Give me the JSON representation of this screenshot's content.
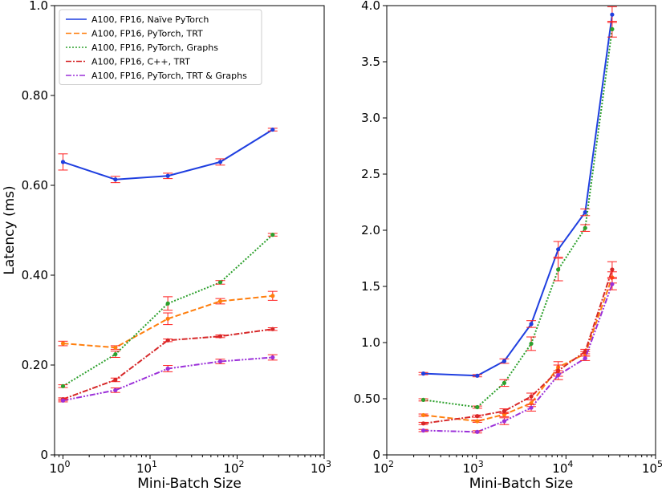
{
  "chart_data": [
    {
      "type": "line",
      "xscale": "log",
      "xlabel": "Mini-Batch Size",
      "ylabel": "Latency (ms)",
      "xlim": [
        0.8,
        1000
      ],
      "ylim": [
        0,
        1.0
      ],
      "x_ticks": [
        "10^0",
        "10^1",
        "10^2",
        "10^3"
      ],
      "y_ticks": [
        "0",
        "0.20",
        "0.40",
        "0.60",
        "0.80",
        "1.0"
      ],
      "legend": "top-left",
      "x": [
        1,
        4,
        16,
        64,
        256
      ],
      "series": [
        {
          "name": "A100, FP16, Naïve PyTorch",
          "color": "#1f3fe0",
          "dash": "solid",
          "values": [
            0.652,
            0.613,
            0.621,
            0.652,
            0.724
          ],
          "errors": [
            0.018,
            0.007,
            0.006,
            0.007,
            0.003
          ]
        },
        {
          "name": "A100, FP16, PyTorch, TRT",
          "color": "#ff7f0e",
          "dash": "dashed",
          "values": [
            0.248,
            0.239,
            0.303,
            0.342,
            0.354
          ],
          "errors": [
            0.005,
            0.004,
            0.013,
            0.006,
            0.01
          ]
        },
        {
          "name": "A100, FP16, PyTorch, Graphs",
          "color": "#2ca02c",
          "dash": "dotted",
          "values": [
            0.153,
            0.224,
            0.337,
            0.384,
            0.49
          ],
          "errors": [
            0.003,
            0.007,
            0.015,
            0.004,
            0.003
          ]
        },
        {
          "name": "A100, FP16, C++, TRT",
          "color": "#d62728",
          "dash": "dashdot",
          "values": [
            0.124,
            0.167,
            0.255,
            0.264,
            0.28
          ],
          "errors": [
            0.003,
            0.004,
            0.003,
            0.003,
            0.003
          ]
        },
        {
          "name": "A100, FP16, PyTorch, TRT & Graphs",
          "color": "#9b30d9",
          "dash": "dashdotdot",
          "values": [
            0.121,
            0.144,
            0.192,
            0.208,
            0.217
          ],
          "errors": [
            0.003,
            0.005,
            0.007,
            0.005,
            0.006
          ]
        }
      ]
    },
    {
      "type": "line",
      "xscale": "log",
      "xlabel": "Mini-Batch Size",
      "ylabel": "",
      "xlim": [
        100,
        100000
      ],
      "ylim": [
        0,
        4.0
      ],
      "x_ticks": [
        "10^2",
        "10^3",
        "10^4",
        "10^5"
      ],
      "y_ticks": [
        "0",
        "0.50",
        "1.0",
        "1.5",
        "2.0",
        "2.5",
        "3.0",
        "3.5",
        "4.0"
      ],
      "x": [
        256,
        1024,
        2048,
        4096,
        8192,
        16384,
        32768
      ],
      "series": [
        {
          "name": "A100, FP16, Naïve PyTorch",
          "color": "#1f3fe0",
          "dash": "solid",
          "values": [
            0.724,
            0.705,
            0.835,
            1.165,
            1.83,
            2.16,
            3.92
          ],
          "errors": [
            0.01,
            0.01,
            0.02,
            0.03,
            0.07,
            0.03,
            0.07
          ]
        },
        {
          "name": "A100, FP16, PyTorch, TRT",
          "color": "#ff7f0e",
          "dash": "dashed",
          "values": [
            0.354,
            0.3,
            0.36,
            0.46,
            0.78,
            0.9,
            1.58
          ],
          "errors": [
            0.01,
            0.01,
            0.02,
            0.03,
            0.05,
            0.02,
            0.05
          ]
        },
        {
          "name": "A100, FP16, PyTorch, Graphs",
          "color": "#2ca02c",
          "dash": "dotted",
          "values": [
            0.49,
            0.425,
            0.64,
            0.99,
            1.65,
            2.02,
            3.79
          ],
          "errors": [
            0.01,
            0.01,
            0.03,
            0.06,
            0.1,
            0.03,
            0.07
          ]
        },
        {
          "name": "A100, FP16, C++, TRT",
          "color": "#d62728",
          "dash": "dashdot",
          "values": [
            0.28,
            0.345,
            0.39,
            0.52,
            0.75,
            0.92,
            1.65
          ],
          "errors": [
            0.01,
            0.01,
            0.02,
            0.03,
            0.05,
            0.02,
            0.07
          ]
        },
        {
          "name": "A100, FP16, PyTorch, TRT & Graphs",
          "color": "#9b30d9",
          "dash": "dashdotdot",
          "values": [
            0.217,
            0.205,
            0.3,
            0.42,
            0.71,
            0.86,
            1.52
          ],
          "errors": [
            0.01,
            0.01,
            0.03,
            0.03,
            0.04,
            0.02,
            0.05
          ]
        }
      ]
    }
  ],
  "colors": {
    "errorbar": "#ff2020",
    "axis": "#000000"
  }
}
